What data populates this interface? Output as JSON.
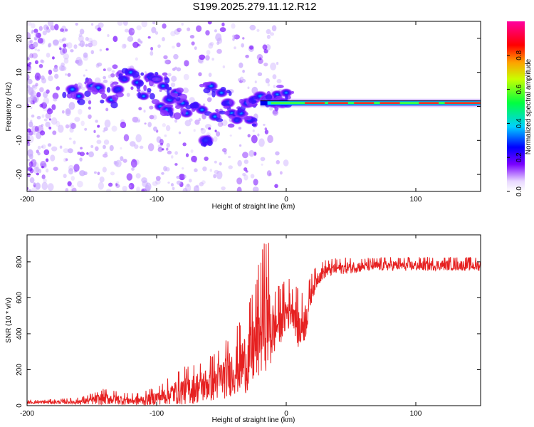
{
  "title": "S199.2025.279.11.12.R12",
  "chart_data": [
    {
      "type": "heatmap",
      "name": "spectrogram",
      "xlabel": "Height of straight line (km)",
      "ylabel": "Frequency (Hz)",
      "xlim": [
        -200,
        150
      ],
      "ylim": [
        -25,
        25
      ],
      "xticks": [
        -200,
        -100,
        0,
        100
      ],
      "yticks": [
        -20,
        -10,
        0,
        10,
        20
      ],
      "xtick_labels": [
        "-200",
        "-100",
        "0",
        "100"
      ],
      "ytick_labels": [
        "-20",
        "-10",
        "0",
        "10",
        "20"
      ],
      "colorbar": {
        "label": "Normalized spectral amplitude",
        "range": [
          0,
          1
        ],
        "ticks": [
          0,
          0.2,
          0.4,
          0.6,
          0.8
        ],
        "tick_labels": [
          "0.0",
          "0.2",
          "0.4",
          "0.6",
          "0.8"
        ],
        "colormap": [
          "#ffffff",
          "#7a00ff",
          "#0000ff",
          "#00e0ff",
          "#00ff40",
          "#ffff00",
          "#ff0000",
          "#ff00a0"
        ]
      },
      "line_frequency": 1.0,
      "line_start_km": -20,
      "blobs": [
        {
          "x": -165,
          "f": 5,
          "v": 0.45
        },
        {
          "x": -160,
          "f": 3,
          "v": 0.3
        },
        {
          "x": -150,
          "f": 6,
          "v": 0.35
        },
        {
          "x": -145,
          "f": 5.5,
          "v": 0.5
        },
        {
          "x": -135,
          "f": 2,
          "v": 0.3
        },
        {
          "x": -130,
          "f": 5,
          "v": 0.4
        },
        {
          "x": -125,
          "f": 8,
          "v": 0.3
        },
        {
          "x": -120,
          "f": 10,
          "v": 0.35
        },
        {
          "x": -115,
          "f": 7,
          "v": 0.3
        },
        {
          "x": -110,
          "f": 3,
          "v": 0.25
        },
        {
          "x": -105,
          "f": 8.5,
          "v": 0.4
        },
        {
          "x": -100,
          "f": 8,
          "v": 0.45
        },
        {
          "x": -95,
          "f": 6,
          "v": 0.3
        },
        {
          "x": -97,
          "f": 0,
          "v": 0.35
        },
        {
          "x": -92,
          "f": -1,
          "v": 0.45
        },
        {
          "x": -90,
          "f": 2,
          "v": 0.5
        },
        {
          "x": -85,
          "f": 4,
          "v": 0.35
        },
        {
          "x": -80,
          "f": 1,
          "v": 0.4
        },
        {
          "x": -77,
          "f": -2,
          "v": 0.35
        },
        {
          "x": -70,
          "f": 0,
          "v": 0.3
        },
        {
          "x": -65,
          "f": -1,
          "v": 0.35
        },
        {
          "x": -62,
          "f": -10,
          "v": 0.55
        },
        {
          "x": -58,
          "f": 6,
          "v": 0.4
        },
        {
          "x": -55,
          "f": -3,
          "v": 0.35
        },
        {
          "x": -50,
          "f": 4,
          "v": 0.35
        },
        {
          "x": -45,
          "f": 1,
          "v": 0.45
        },
        {
          "x": -42,
          "f": -2,
          "v": 0.35
        },
        {
          "x": -38,
          "f": -4,
          "v": 0.3
        },
        {
          "x": -35,
          "f": -2,
          "v": 0.35
        },
        {
          "x": -30,
          "f": 1,
          "v": 0.5
        },
        {
          "x": -28,
          "f": -4,
          "v": 0.3
        },
        {
          "x": -25,
          "f": 2,
          "v": 0.35
        },
        {
          "x": -20,
          "f": 3,
          "v": 0.5
        },
        {
          "x": -15,
          "f": 2,
          "v": 0.45
        },
        {
          "x": -10,
          "f": 1,
          "v": 0.4
        },
        {
          "x": -7,
          "f": 3.5,
          "v": 0.3
        },
        {
          "x": -3,
          "f": 1,
          "v": 0.55
        },
        {
          "x": 0,
          "f": 4,
          "v": 0.3
        }
      ],
      "line_hotspots": [
        {
          "x": 22,
          "v": 0.8
        },
        {
          "x": 40,
          "v": 0.85
        },
        {
          "x": 60,
          "v": 0.75
        },
        {
          "x": 80,
          "v": 0.8
        },
        {
          "x": 110,
          "v": 0.8
        },
        {
          "x": 130,
          "v": 0.75
        },
        {
          "x": 145,
          "v": 0.85
        }
      ]
    },
    {
      "type": "line",
      "name": "snr",
      "xlabel": "Height of straight line (km)",
      "ylabel": "SNR (10 * v/v)",
      "xlim": [
        -200,
        150
      ],
      "ylim": [
        0,
        950
      ],
      "xticks": [
        -200,
        -100,
        0,
        100
      ],
      "yticks": [
        0,
        200,
        400,
        600,
        800
      ],
      "xtick_labels": [
        "-200",
        "-100",
        "0",
        "100"
      ],
      "ytick_labels": [
        "0",
        "200",
        "400",
        "600",
        "800"
      ],
      "series": [
        {
          "name": "SNR",
          "color": "#e62020",
          "x": [
            -200,
            -180,
            -160,
            -150,
            -140,
            -130,
            -120,
            -110,
            -100,
            -90,
            -80,
            -70,
            -60,
            -50,
            -40,
            -30,
            -25,
            -20,
            -15,
            -12,
            -10,
            -5,
            0,
            5,
            10,
            15,
            20,
            25,
            30,
            40,
            50,
            60,
            80,
            100,
            120,
            140,
            150
          ],
          "values": [
            18,
            20,
            22,
            30,
            40,
            35,
            28,
            30,
            45,
            65,
            85,
            100,
            120,
            150,
            200,
            250,
            320,
            420,
            500,
            450,
            420,
            470,
            520,
            560,
            420,
            480,
            650,
            720,
            750,
            765,
            770,
            775,
            780,
            778,
            782,
            780,
            778
          ],
          "noise": [
            8,
            10,
            15,
            25,
            35,
            30,
            25,
            30,
            40,
            60,
            80,
            90,
            100,
            120,
            140,
            180,
            220,
            260,
            300,
            280,
            150,
            130,
            120,
            110,
            130,
            110,
            60,
            45,
            40,
            35,
            35,
            30,
            30,
            30,
            30,
            30,
            30
          ]
        }
      ]
    }
  ]
}
